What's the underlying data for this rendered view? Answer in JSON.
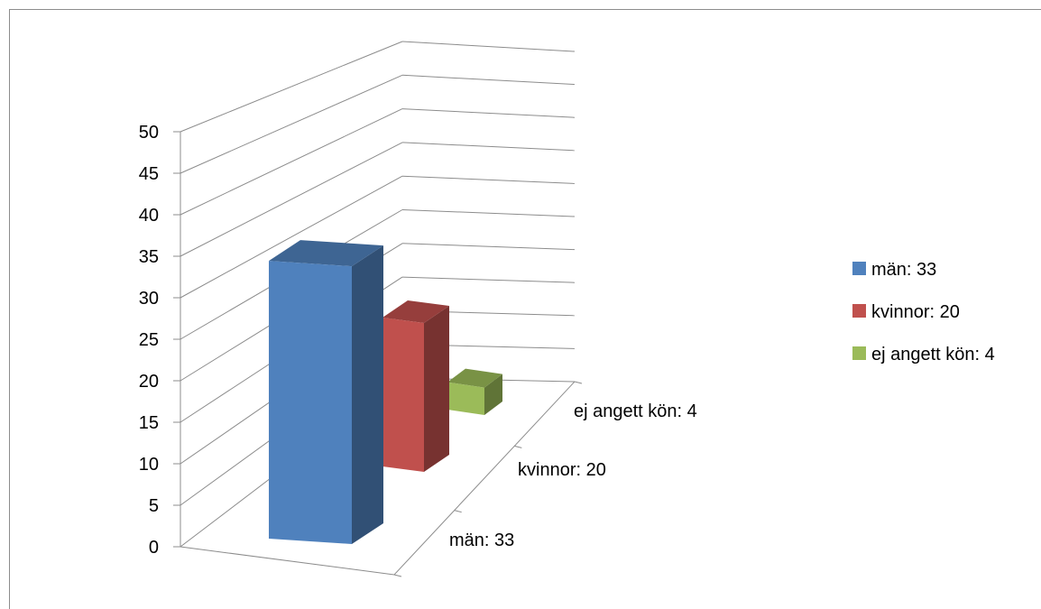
{
  "chart_data": {
    "type": "bar",
    "subtype": "3d-column",
    "categories": [
      "män: 33",
      "kvinnor: 20",
      "ej angett kön: 4"
    ],
    "values": [
      33,
      20,
      4
    ],
    "colors": [
      "#4F81BD",
      "#C0504D",
      "#9BBB59"
    ],
    "yticks": [
      "0",
      "5",
      "10",
      "15",
      "20",
      "25",
      "30",
      "35",
      "40",
      "45",
      "50"
    ],
    "ylim": [
      0,
      50
    ],
    "grid": true,
    "legend": {
      "position": "right",
      "entries": [
        "män: 33",
        "kvinnor: 20",
        "ej angett kön: 4"
      ]
    }
  }
}
